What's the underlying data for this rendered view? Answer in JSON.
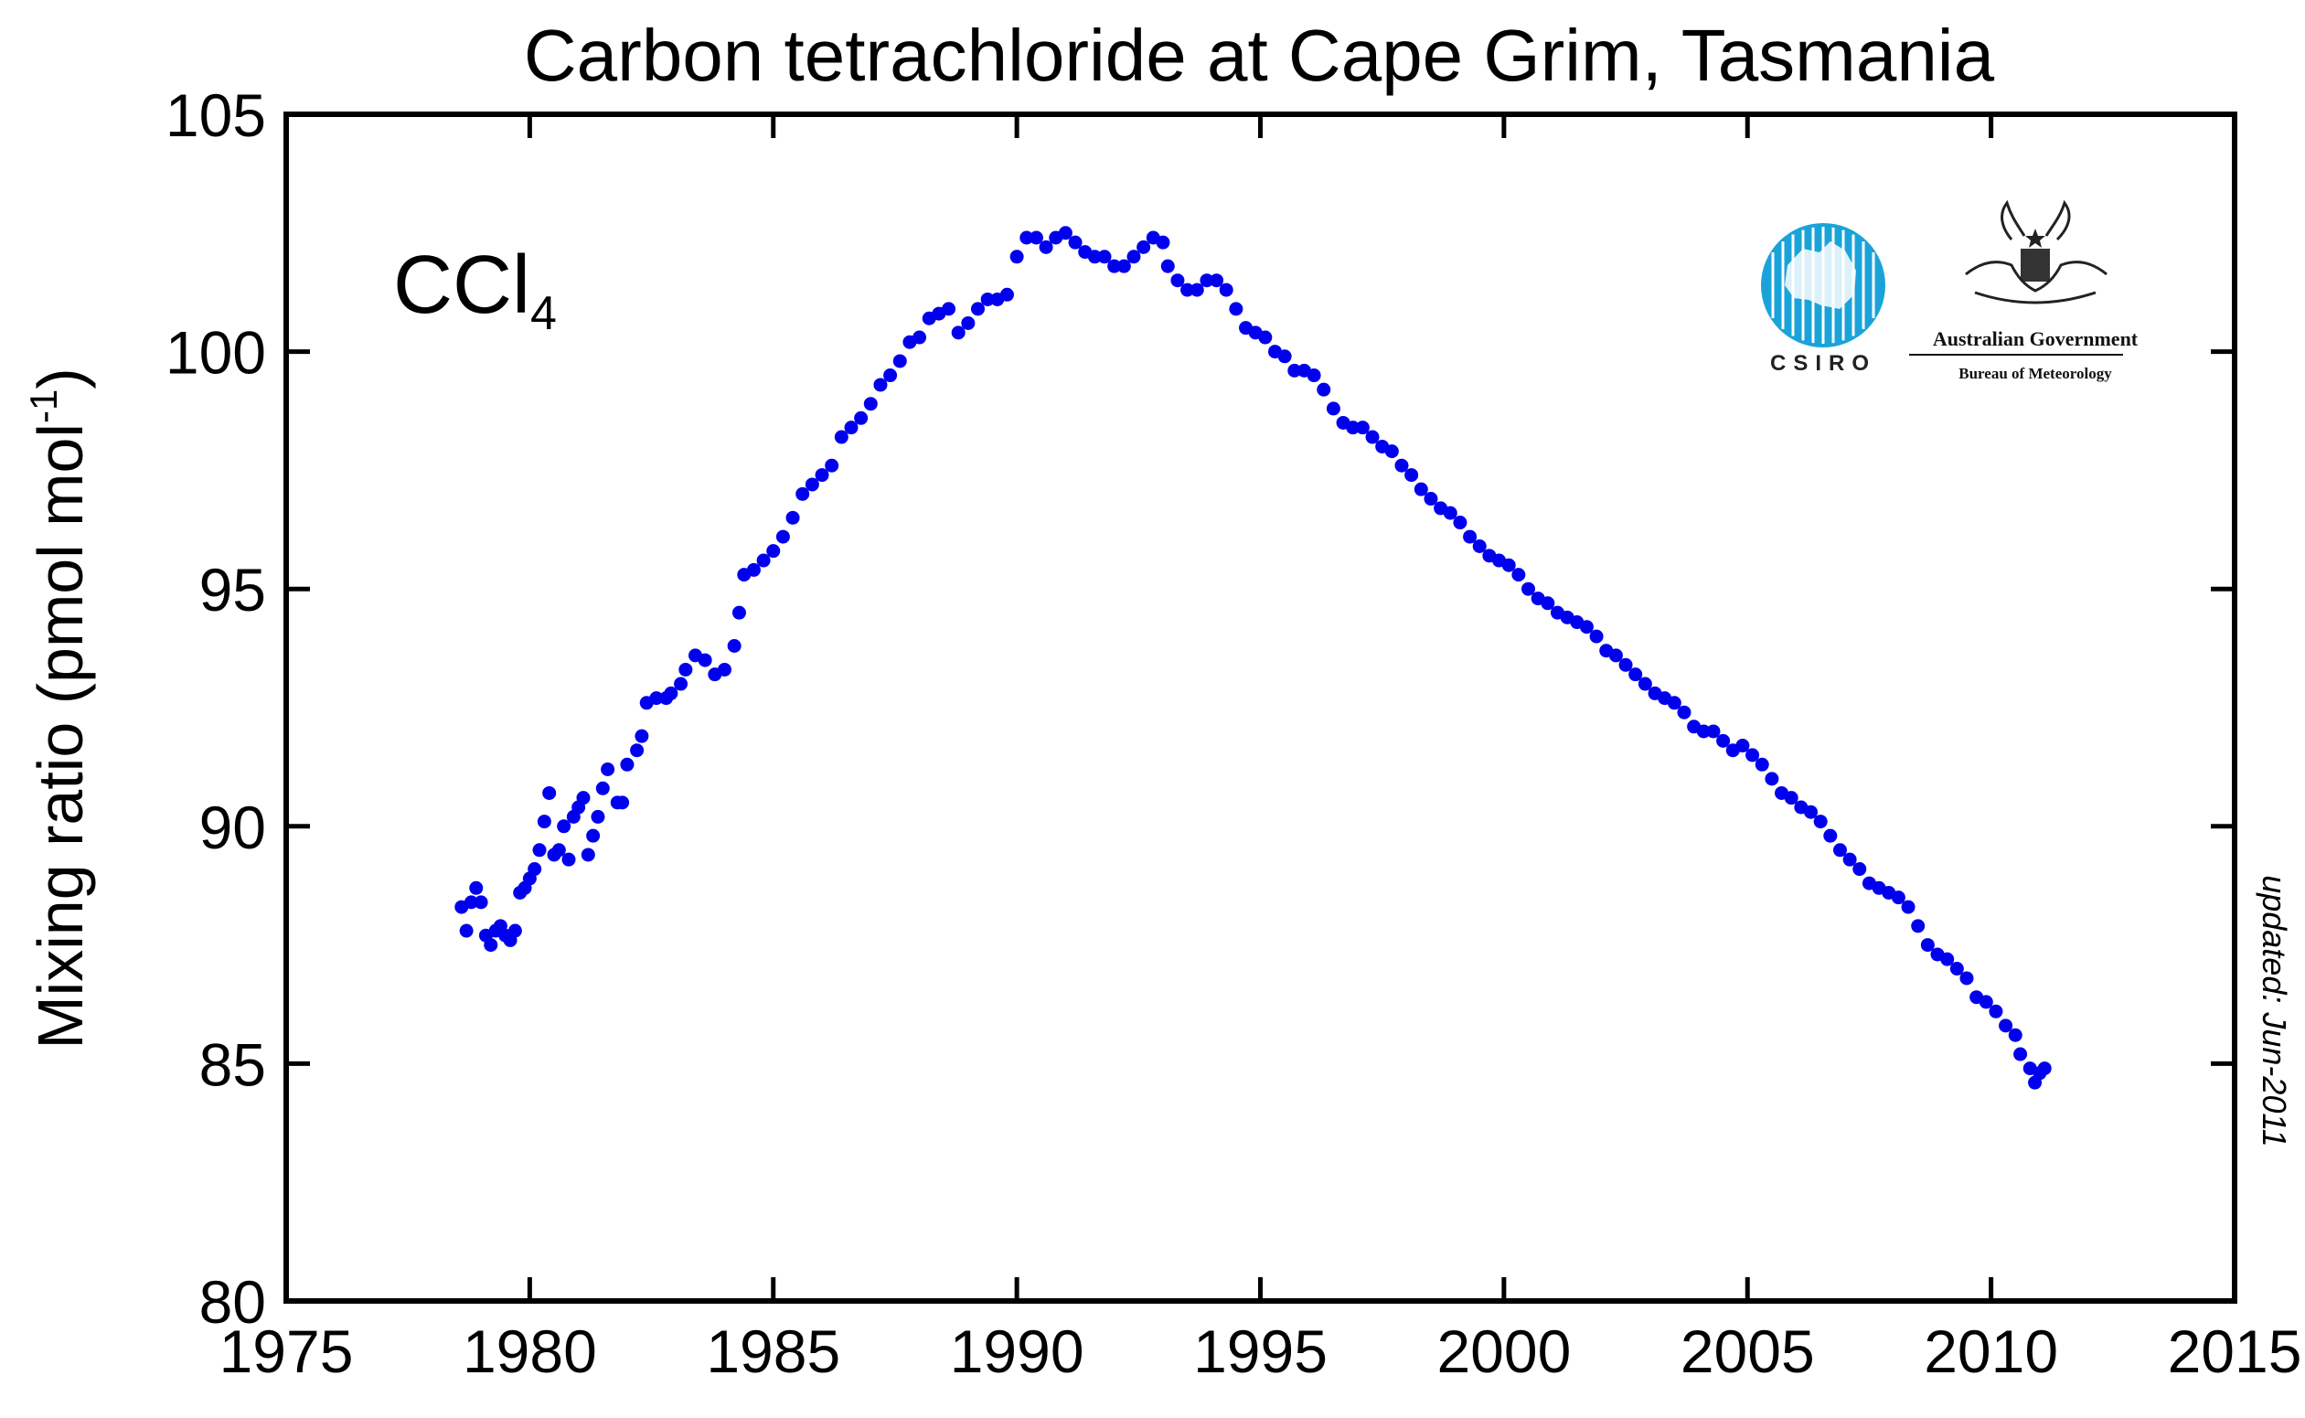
{
  "chart_data": {
    "type": "scatter",
    "title": "Carbon tetrachloride at Cape Grim, Tasmania",
    "formula": {
      "main": "CCl",
      "subscript": "4"
    },
    "xlabel": "",
    "ylabel": {
      "text": "Mixing ratio (pmol mol",
      "superscript": "-1",
      "close": ")"
    },
    "xlim": [
      1975,
      2015
    ],
    "ylim": [
      80,
      105
    ],
    "x_ticks": [
      "1975",
      "1980",
      "1985",
      "1990",
      "1995",
      "2000",
      "2005",
      "2010",
      "2015"
    ],
    "y_ticks": [
      "80",
      "85",
      "90",
      "95",
      "100",
      "105"
    ],
    "marker_color": "#0000ee",
    "updated_note": "updated:  Jun-2011",
    "series": [
      {
        "name": "CCl4",
        "points": [
          [
            1978.6,
            88.3
          ],
          [
            1978.7,
            87.8
          ],
          [
            1978.8,
            88.4
          ],
          [
            1978.9,
            88.7
          ],
          [
            1979.0,
            88.4
          ],
          [
            1979.1,
            87.7
          ],
          [
            1979.2,
            87.5
          ],
          [
            1979.3,
            87.8
          ],
          [
            1979.4,
            87.9
          ],
          [
            1979.5,
            87.7
          ],
          [
            1979.6,
            87.6
          ],
          [
            1979.7,
            87.8
          ],
          [
            1979.8,
            88.6
          ],
          [
            1979.9,
            88.7
          ],
          [
            1980.0,
            88.9
          ],
          [
            1980.1,
            89.1
          ],
          [
            1980.2,
            89.5
          ],
          [
            1980.3,
            90.1
          ],
          [
            1980.4,
            90.7
          ],
          [
            1980.5,
            89.4
          ],
          [
            1980.6,
            89.5
          ],
          [
            1980.7,
            90.0
          ],
          [
            1980.8,
            89.3
          ],
          [
            1980.9,
            90.2
          ],
          [
            1981.0,
            90.4
          ],
          [
            1981.1,
            90.6
          ],
          [
            1981.2,
            89.4
          ],
          [
            1981.3,
            89.8
          ],
          [
            1981.4,
            90.2
          ],
          [
            1981.5,
            90.8
          ],
          [
            1981.6,
            91.2
          ],
          [
            1981.8,
            90.5
          ],
          [
            1981.9,
            90.5
          ],
          [
            1982.0,
            91.3
          ],
          [
            1982.2,
            91.6
          ],
          [
            1982.3,
            91.9
          ],
          [
            1982.4,
            92.6
          ],
          [
            1982.6,
            92.7
          ],
          [
            1982.8,
            92.7
          ],
          [
            1982.9,
            92.8
          ],
          [
            1983.1,
            93.0
          ],
          [
            1983.2,
            93.3
          ],
          [
            1983.4,
            93.6
          ],
          [
            1983.6,
            93.5
          ],
          [
            1983.8,
            93.2
          ],
          [
            1984.0,
            93.3
          ],
          [
            1984.2,
            93.8
          ],
          [
            1984.3,
            94.5
          ],
          [
            1984.4,
            95.3
          ],
          [
            1984.6,
            95.4
          ],
          [
            1984.8,
            95.6
          ],
          [
            1985.0,
            95.8
          ],
          [
            1985.2,
            96.1
          ],
          [
            1985.4,
            96.5
          ],
          [
            1985.6,
            97.0
          ],
          [
            1985.8,
            97.2
          ],
          [
            1986.0,
            97.4
          ],
          [
            1986.2,
            97.6
          ],
          [
            1986.4,
            98.2
          ],
          [
            1986.6,
            98.4
          ],
          [
            1986.8,
            98.6
          ],
          [
            1987.0,
            98.9
          ],
          [
            1987.2,
            99.3
          ],
          [
            1987.4,
            99.5
          ],
          [
            1987.6,
            99.8
          ],
          [
            1987.8,
            100.2
          ],
          [
            1988.0,
            100.3
          ],
          [
            1988.2,
            100.7
          ],
          [
            1988.4,
            100.8
          ],
          [
            1988.6,
            100.9
          ],
          [
            1988.8,
            100.4
          ],
          [
            1989.0,
            100.6
          ],
          [
            1989.2,
            100.9
          ],
          [
            1989.4,
            101.1
          ],
          [
            1989.6,
            101.1
          ],
          [
            1989.8,
            101.2
          ],
          [
            1990.0,
            102.0
          ],
          [
            1990.2,
            102.4
          ],
          [
            1990.4,
            102.4
          ],
          [
            1990.6,
            102.2
          ],
          [
            1990.8,
            102.4
          ],
          [
            1991.0,
            102.5
          ],
          [
            1991.2,
            102.3
          ],
          [
            1991.4,
            102.1
          ],
          [
            1991.6,
            102.0
          ],
          [
            1991.8,
            102.0
          ],
          [
            1992.0,
            101.8
          ],
          [
            1992.2,
            101.8
          ],
          [
            1992.4,
            102.0
          ],
          [
            1992.6,
            102.2
          ],
          [
            1992.8,
            102.4
          ],
          [
            1993.0,
            102.3
          ],
          [
            1993.1,
            101.8
          ],
          [
            1993.3,
            101.5
          ],
          [
            1993.5,
            101.3
          ],
          [
            1993.7,
            101.3
          ],
          [
            1993.9,
            101.5
          ],
          [
            1994.1,
            101.5
          ],
          [
            1994.3,
            101.3
          ],
          [
            1994.5,
            100.9
          ],
          [
            1994.7,
            100.5
          ],
          [
            1994.9,
            100.4
          ],
          [
            1995.1,
            100.3
          ],
          [
            1995.3,
            100.0
          ],
          [
            1995.5,
            99.9
          ],
          [
            1995.7,
            99.6
          ],
          [
            1995.9,
            99.6
          ],
          [
            1996.1,
            99.5
          ],
          [
            1996.3,
            99.2
          ],
          [
            1996.5,
            98.8
          ],
          [
            1996.7,
            98.5
          ],
          [
            1996.9,
            98.4
          ],
          [
            1997.1,
            98.4
          ],
          [
            1997.3,
            98.2
          ],
          [
            1997.5,
            98.0
          ],
          [
            1997.7,
            97.9
          ],
          [
            1997.9,
            97.6
          ],
          [
            1998.1,
            97.4
          ],
          [
            1998.3,
            97.1
          ],
          [
            1998.5,
            96.9
          ],
          [
            1998.7,
            96.7
          ],
          [
            1998.9,
            96.6
          ],
          [
            1999.1,
            96.4
          ],
          [
            1999.3,
            96.1
          ],
          [
            1999.5,
            95.9
          ],
          [
            1999.7,
            95.7
          ],
          [
            1999.9,
            95.6
          ],
          [
            2000.1,
            95.5
          ],
          [
            2000.3,
            95.3
          ],
          [
            2000.5,
            95.0
          ],
          [
            2000.7,
            94.8
          ],
          [
            2000.9,
            94.7
          ],
          [
            2001.1,
            94.5
          ],
          [
            2001.3,
            94.4
          ],
          [
            2001.5,
            94.3
          ],
          [
            2001.7,
            94.2
          ],
          [
            2001.9,
            94.0
          ],
          [
            2002.1,
            93.7
          ],
          [
            2002.3,
            93.6
          ],
          [
            2002.5,
            93.4
          ],
          [
            2002.7,
            93.2
          ],
          [
            2002.9,
            93.0
          ],
          [
            2003.1,
            92.8
          ],
          [
            2003.3,
            92.7
          ],
          [
            2003.5,
            92.6
          ],
          [
            2003.7,
            92.4
          ],
          [
            2003.9,
            92.1
          ],
          [
            2004.1,
            92.0
          ],
          [
            2004.3,
            92.0
          ],
          [
            2004.5,
            91.8
          ],
          [
            2004.7,
            91.6
          ],
          [
            2004.9,
            91.7
          ],
          [
            2005.1,
            91.5
          ],
          [
            2005.3,
            91.3
          ],
          [
            2005.5,
            91.0
          ],
          [
            2005.7,
            90.7
          ],
          [
            2005.9,
            90.6
          ],
          [
            2006.1,
            90.4
          ],
          [
            2006.3,
            90.3
          ],
          [
            2006.5,
            90.1
          ],
          [
            2006.7,
            89.8
          ],
          [
            2006.9,
            89.5
          ],
          [
            2007.1,
            89.3
          ],
          [
            2007.3,
            89.1
          ],
          [
            2007.5,
            88.8
          ],
          [
            2007.7,
            88.7
          ],
          [
            2007.9,
            88.6
          ],
          [
            2008.1,
            88.5
          ],
          [
            2008.3,
            88.3
          ],
          [
            2008.5,
            87.9
          ],
          [
            2008.7,
            87.5
          ],
          [
            2008.9,
            87.3
          ],
          [
            2009.1,
            87.2
          ],
          [
            2009.3,
            87.0
          ],
          [
            2009.5,
            86.8
          ],
          [
            2009.7,
            86.4
          ],
          [
            2009.9,
            86.3
          ],
          [
            2010.1,
            86.1
          ],
          [
            2010.3,
            85.8
          ],
          [
            2010.5,
            85.6
          ],
          [
            2010.6,
            85.2
          ],
          [
            2010.8,
            84.9
          ],
          [
            2010.9,
            84.6
          ],
          [
            2011.0,
            84.8
          ],
          [
            2011.1,
            84.9
          ]
        ]
      }
    ]
  },
  "logos": {
    "csiro_label": "CSIRO",
    "gov_title": "Australian Government",
    "gov_subtitle": "Bureau of Meteorology"
  },
  "colors": {
    "csiro_blue": "#1aa3d9",
    "axis": "#000000"
  }
}
